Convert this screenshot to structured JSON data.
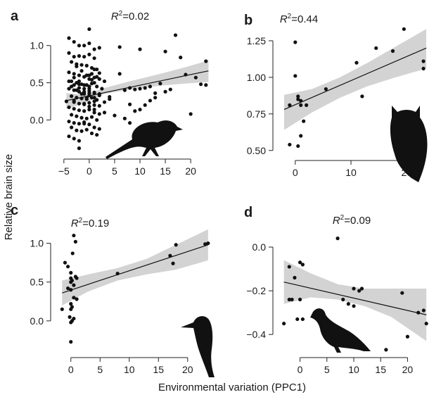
{
  "figure": {
    "ylabel": "Relative brain size",
    "xlabel": "Environmental variation (PPC1)"
  },
  "chart_data": [
    {
      "panel": "a",
      "type": "scatter",
      "r2": "0.02",
      "xlim": [
        -6.5,
        24
      ],
      "ylim": [
        -0.45,
        1.3
      ],
      "xticks": [
        -5,
        0,
        5,
        10,
        15,
        20
      ],
      "yticks": [
        0.0,
        0.5,
        1.0
      ],
      "fit": {
        "x": [
          -4.5,
          23.5
        ],
        "y": [
          0.26,
          0.66
        ]
      },
      "band": {
        "x": [
          -4.5,
          -1,
          3,
          8,
          14,
          19,
          23.5
        ],
        "upper": [
          0.36,
          0.34,
          0.43,
          0.52,
          0.62,
          0.71,
          0.8
        ],
        "lower": [
          0.15,
          0.22,
          0.35,
          0.41,
          0.46,
          0.49,
          0.51
        ]
      },
      "points_x": [
        0,
        10,
        15,
        17,
        23,
        2,
        4,
        6,
        7,
        8,
        9,
        10,
        11,
        12,
        13,
        14,
        16,
        18,
        19,
        21,
        22,
        23,
        6,
        8,
        10,
        20,
        -4,
        -3,
        -2,
        -1,
        0,
        1,
        2,
        -4,
        -3,
        -2,
        -1,
        0,
        1,
        -3.5,
        -2.5,
        -1.5,
        -0.5,
        0.5,
        1.5,
        -4,
        -3,
        -2,
        -1,
        0,
        1,
        2,
        3,
        -3.5,
        -2.5,
        -1.5,
        -0.5,
        0.5,
        1.5,
        2.5,
        -4,
        -3,
        -2,
        -1,
        0,
        1,
        2,
        -3.5,
        -2.5,
        -1.5,
        -0.5,
        0.5,
        1.5,
        -4.5,
        -3,
        -2,
        -1,
        0,
        1,
        2,
        3,
        4,
        -4,
        -3,
        -2,
        -1,
        0,
        1,
        2,
        -3.5,
        -2.5,
        -1.5,
        -0.5,
        0.5,
        1.5,
        -4,
        -3,
        -2,
        -1,
        0,
        1,
        2,
        -3.5,
        -2.5,
        -1.5,
        -0.5,
        0.5,
        1.5,
        -4,
        -3,
        -2,
        -1,
        0,
        1,
        -3.5,
        -2.5,
        -1.5,
        -0.5,
        0.5,
        1.5,
        -4,
        -3,
        -2,
        -1,
        0,
        1,
        2,
        -3,
        -2,
        -1,
        0,
        1,
        -2.5,
        -1.5,
        -0.5,
        0.5,
        -2,
        -1,
        0,
        1,
        -3,
        -1,
        0,
        1,
        3,
        5,
        7,
        8,
        9,
        11,
        12,
        13,
        15,
        -2,
        0,
        -1,
        1
      ],
      "points_y": [
        1.22,
        0.95,
        0.92,
        1.14,
        0.79,
        0.33,
        0.31,
        0.62,
        0.4,
        0.43,
        0.41,
        0.42,
        0.43,
        0.45,
        0.36,
        0.49,
        0.41,
        0.84,
        0.61,
        0.57,
        0.48,
        0.47,
        0.98,
        0.21,
        0.14,
        0.08,
        1.1,
        1.05,
        1.0,
        1.0,
        1.03,
        0.95,
        0.97,
        0.9,
        0.85,
        0.86,
        0.85,
        0.88,
        0.83,
        0.78,
        0.75,
        0.74,
        0.73,
        0.7,
        0.68,
        0.64,
        0.62,
        0.6,
        0.58,
        0.6,
        0.57,
        0.55,
        0.52,
        0.52,
        0.5,
        0.48,
        0.47,
        0.49,
        0.45,
        0.42,
        0.42,
        0.4,
        0.38,
        0.37,
        0.39,
        0.36,
        0.35,
        0.32,
        0.3,
        0.29,
        0.28,
        0.3,
        0.27,
        0.25,
        0.24,
        0.22,
        0.21,
        0.23,
        0.2,
        0.19,
        0.24,
        0.28,
        0.17,
        0.15,
        0.13,
        0.12,
        0.14,
        0.1,
        0.08,
        0.07,
        0.05,
        0.03,
        0.02,
        0.04,
        0.0,
        -0.02,
        -0.04,
        -0.05,
        -0.03,
        -0.06,
        -0.1,
        -0.12,
        -0.1,
        -0.14,
        -0.15,
        -0.13,
        -0.18,
        -0.2,
        -0.22,
        -0.25,
        -0.28,
        -0.05,
        0.55,
        0.5,
        0.45,
        0.4,
        0.35,
        0.3,
        0.62,
        0.58,
        0.52,
        0.47,
        0.43,
        0.38,
        0.33,
        0.68,
        0.63,
        0.57,
        0.52,
        0.47,
        0.42,
        0.37,
        0.72,
        0.66,
        0.6,
        0.54,
        0.48,
        0.42,
        0.36,
        0.3,
        0.26,
        0.22,
        0.18,
        0.14,
        0.1,
        0.06,
        0.02,
        -0.04,
        0.12,
        0.2,
        0.26,
        0.3,
        0.38,
        -0.38,
        0.45,
        0.35,
        0.25,
        0.2,
        0.18,
        0.14,
        0.11,
        0.07,
        0.04,
        0.09,
        0.16,
        0.22,
        0.3,
        0.34,
        0.38
      ],
      "silhouette": "small-bird"
    },
    {
      "panel": "b",
      "type": "scatter",
      "r2": "0.44",
      "xlim": [
        -3,
        24
      ],
      "ylim": [
        0.47,
        1.37
      ],
      "xticks": [
        0,
        10,
        20
      ],
      "yticks": [
        0.5,
        0.75,
        1.0,
        1.25
      ],
      "fit": {
        "x": [
          -2,
          23.5
        ],
        "y": [
          0.78,
          1.2
        ]
      },
      "band": {
        "x": [
          -2,
          3,
          8,
          13,
          18,
          23.5
        ],
        "upper": [
          0.88,
          0.92,
          1.0,
          1.1,
          1.21,
          1.33
        ],
        "lower": [
          0.64,
          0.76,
          0.86,
          0.94,
          1.0,
          1.06
        ]
      },
      "points_x": [
        0,
        -1,
        0,
        0.5,
        0.5,
        1,
        1,
        1.5,
        2,
        5.5,
        11,
        14.5,
        17.5,
        19.5,
        23,
        23,
        -1,
        0.5,
        1,
        12
      ],
      "points_y": [
        1.24,
        0.81,
        1.01,
        0.87,
        0.85,
        0.84,
        0.81,
        0.7,
        0.81,
        0.92,
        1.1,
        1.2,
        1.18,
        1.33,
        1.11,
        1.06,
        0.54,
        0.53,
        0.6,
        0.87
      ],
      "silhouette": "owl"
    },
    {
      "panel": "c",
      "type": "scatter",
      "r2": "0.19",
      "xlim": [
        -2.5,
        24
      ],
      "ylim": [
        -0.4,
        1.25
      ],
      "xticks": [
        0,
        5,
        10,
        15,
        20
      ],
      "yticks": [
        0.0,
        0.5,
        1.0
      ],
      "fit": {
        "x": [
          -1.5,
          23.5
        ],
        "y": [
          0.36,
          0.98
        ]
      },
      "band": {
        "x": [
          -1.5,
          3,
          8,
          13,
          18,
          23.5
        ],
        "upper": [
          0.52,
          0.6,
          0.68,
          0.8,
          0.98,
          1.18
        ],
        "lower": [
          0.2,
          0.38,
          0.52,
          0.6,
          0.66,
          0.78
        ]
      },
      "points_x": [
        -1,
        -0.5,
        0,
        0.2,
        0,
        0.5,
        1,
        0.8,
        0,
        -0.5,
        0.5,
        1,
        0,
        0.2,
        0,
        -0.2,
        0.5,
        0.2,
        0,
        -1.5,
        0.5,
        0.8,
        0.3,
        0,
        8,
        17,
        17.5,
        18,
        23,
        23.5,
        0
      ],
      "points_y": [
        0.75,
        0.7,
        0.55,
        0.52,
        0.5,
        0.46,
        0.55,
        0.57,
        0.4,
        0.42,
        0.3,
        0.28,
        0.22,
        0.18,
        0.15,
        0.05,
        0.03,
        0.0,
        -0.02,
        0.15,
        1.1,
        1.02,
        0.87,
        0.62,
        0.61,
        0.84,
        0.74,
        0.98,
        0.99,
        1.0,
        -0.27
      ],
      "silhouette": "woodpecker"
    },
    {
      "panel": "d",
      "type": "scatter",
      "r2": "0.09",
      "xlim": [
        -4,
        24
      ],
      "ylim": [
        -0.48,
        0.1
      ],
      "xticks": [
        0,
        5,
        10,
        15,
        20
      ],
      "yticks": [
        -0.4,
        -0.2,
        0.0
      ],
      "fit": {
        "x": [
          -3,
          23.5
        ],
        "y": [
          -0.16,
          -0.31
        ]
      },
      "band": {
        "x": [
          -3,
          2,
          7,
          12,
          17,
          23.5
        ],
        "upper": [
          -0.06,
          -0.12,
          -0.17,
          -0.19,
          -0.19,
          -0.19
        ],
        "lower": [
          -0.26,
          -0.23,
          -0.24,
          -0.27,
          -0.32,
          -0.43
        ]
      },
      "points_x": [
        7,
        0,
        0.5,
        -2,
        -1,
        -1.5,
        -2,
        0,
        10,
        8,
        11,
        11.5,
        9,
        19,
        10,
        23,
        23.5,
        20,
        0.5,
        -3,
        -0.5,
        16,
        22
      ],
      "points_y": [
        0.04,
        -0.07,
        -0.08,
        -0.09,
        -0.14,
        -0.24,
        -0.24,
        -0.24,
        -0.19,
        -0.24,
        -0.2,
        -0.19,
        -0.26,
        -0.21,
        -0.27,
        -0.29,
        -0.35,
        -0.41,
        -0.33,
        -0.35,
        -0.33,
        -0.47,
        -0.3
      ],
      "silhouette": "grouse"
    }
  ]
}
